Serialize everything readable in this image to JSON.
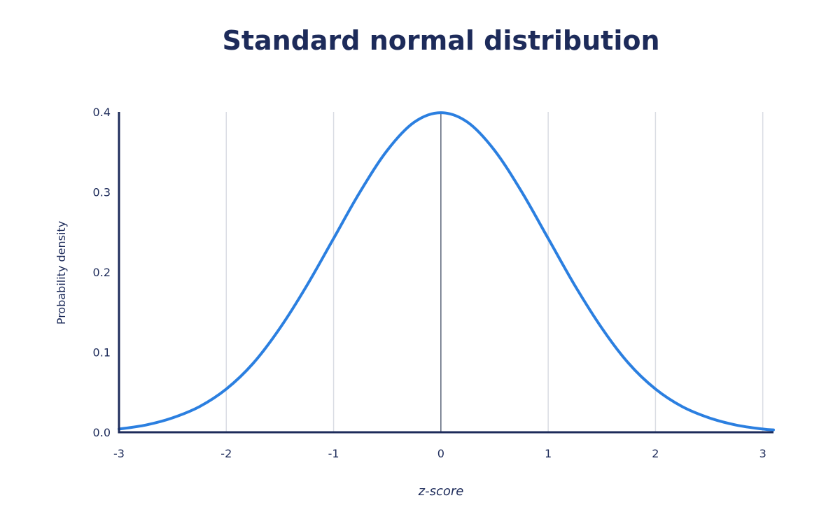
{
  "chart_data": {
    "type": "line",
    "title": "Standard normal distribution",
    "xlabel": "z-score",
    "ylabel": "Probability density",
    "xlim": [
      -3,
      3.1
    ],
    "ylim": [
      0,
      0.4
    ],
    "x_ticks": [
      -3,
      -2,
      -1,
      0,
      1,
      2,
      3
    ],
    "y_ticks": [
      0.0,
      0.1,
      0.2,
      0.3,
      0.4
    ],
    "x_tick_labels": [
      "-3",
      "-2",
      "-1",
      "0",
      "1",
      "2",
      "3"
    ],
    "y_tick_labels": [
      "0.0",
      "0.1",
      "0.2",
      "0.3",
      "0.4"
    ],
    "grid": "vertical",
    "series": [
      {
        "x": [
          -3.0,
          -2.75,
          -2.5,
          -2.25,
          -2.0,
          -1.75,
          -1.5,
          -1.25,
          -1.0,
          -0.75,
          -0.5,
          -0.25,
          0.0,
          0.25,
          0.5,
          0.75,
          1.0,
          1.25,
          1.5,
          1.75,
          2.0,
          2.25,
          2.5,
          2.75,
          3.0,
          3.1
        ],
        "y": [
          0.004,
          0.009,
          0.018,
          0.032,
          0.054,
          0.086,
          0.13,
          0.183,
          0.242,
          0.301,
          0.352,
          0.387,
          0.399,
          0.387,
          0.352,
          0.301,
          0.242,
          0.183,
          0.13,
          0.086,
          0.054,
          0.032,
          0.018,
          0.009,
          0.004,
          0.003
        ]
      }
    ],
    "colors": {
      "curve": "#2b7fe0",
      "axis": "#1d2b5a",
      "grid": "#d9dce3",
      "mean_line": "#5a6378",
      "text": "#1d2b5a"
    }
  }
}
